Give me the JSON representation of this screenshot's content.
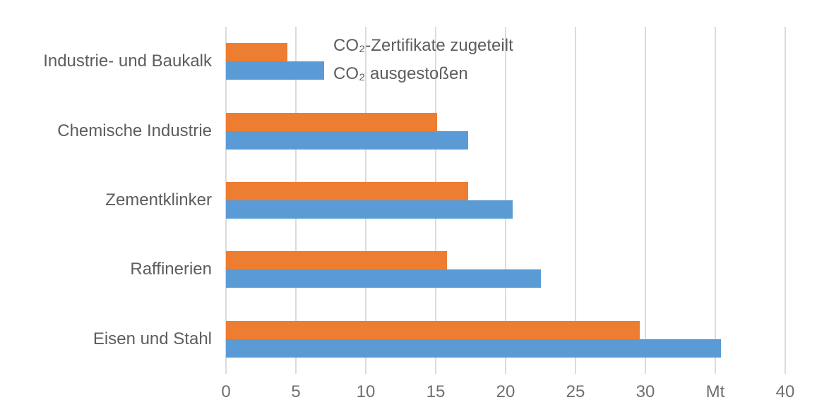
{
  "chart_data": {
    "type": "bar",
    "orientation": "horizontal",
    "title": "",
    "categories": [
      "Industrie- und Baukalk",
      "Chemische Industrie",
      "Zementklinker",
      "Raffinerien",
      "Eisen und Stahl"
    ],
    "series": [
      {
        "name": "CO₂-Zertifikate zugeteilt",
        "color": "#ED7D31",
        "values": [
          4.4,
          15.1,
          17.3,
          15.8,
          29.6
        ]
      },
      {
        "name": "CO₂ ausgestoßen",
        "color": "#5B9BD5",
        "values": [
          7.0,
          17.3,
          20.5,
          22.5,
          35.4
        ]
      }
    ],
    "x_axis": {
      "min": 0,
      "max": 40,
      "unit_label": "Mt",
      "tick_values": [
        0,
        5,
        10,
        15,
        20,
        25,
        30,
        35,
        40
      ],
      "tick_labels": [
        "0",
        "5",
        "10",
        "15",
        "20",
        "25",
        "30",
        "Mt",
        "40"
      ]
    },
    "grid": true,
    "gridline_color": "#dbdbdb",
    "legend_position": "top-inside"
  },
  "legend": {
    "items": [
      {
        "label": "CO₂-Zertifikate zugeteilt",
        "color": "#ED7D31"
      },
      {
        "label": "CO₂ ausgestoßen",
        "color": "#5B9BD5"
      }
    ]
  }
}
